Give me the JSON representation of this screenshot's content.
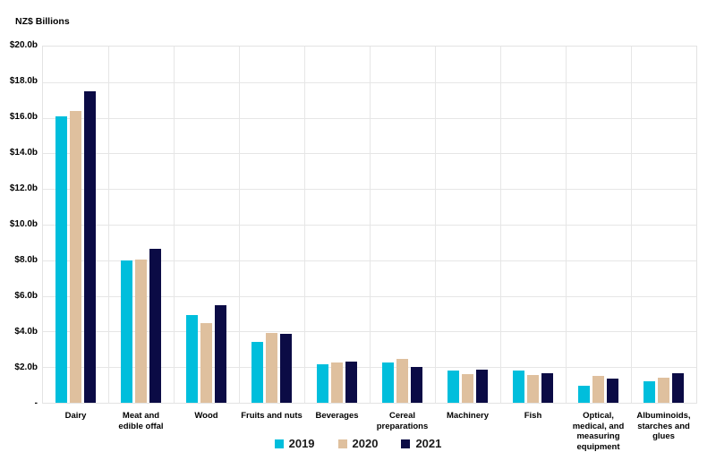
{
  "chart_title": "NZ$ Billions",
  "colors": {
    "background": "#ffffff",
    "gridline": "#e6e6e6",
    "plot_border": "#e3e3e3",
    "text": "#000000",
    "series_2019": "#00bedc",
    "series_2020": "#dfc09e",
    "series_2021": "#0b0b45"
  },
  "chart_data": {
    "type": "bar",
    "title": "NZ$ Billions",
    "ylabel": "NZ$ Billions",
    "xlabel": "",
    "ylim": [
      0,
      20
    ],
    "ytick_step": 2,
    "ytick_labels": [
      "$20.0b",
      "$18.0b",
      "$16.0b",
      "$14.0b",
      "$12.0b",
      "$10.0b",
      "$8.0b",
      "$6.0b",
      "$4.0b",
      "$2.0b",
      "-"
    ],
    "grid": true,
    "legend_position": "bottom",
    "categories": [
      "Dairy",
      "Meat and\nedible offal",
      "Wood",
      "Fruits and nuts",
      "Beverages",
      "Cereal\npreparations",
      "Machinery",
      "Fish",
      "Optical,\nmedical, and\nmeasuring\nequipment",
      "Albuminoids,\nstarches and\nglues"
    ],
    "series": [
      {
        "name": "2019",
        "color": "#00bedc",
        "values": [
          16.1,
          8.0,
          4.95,
          3.4,
          2.15,
          2.25,
          1.8,
          1.8,
          0.95,
          1.2
        ]
      },
      {
        "name": "2020",
        "color": "#dfc09e",
        "values": [
          16.4,
          8.05,
          4.45,
          3.9,
          2.25,
          2.45,
          1.6,
          1.55,
          1.5,
          1.4
        ]
      },
      {
        "name": "2021",
        "color": "#0b0b45",
        "values": [
          17.5,
          8.65,
          5.5,
          3.85,
          2.3,
          2.0,
          1.85,
          1.65,
          1.35,
          1.65
        ]
      }
    ]
  }
}
